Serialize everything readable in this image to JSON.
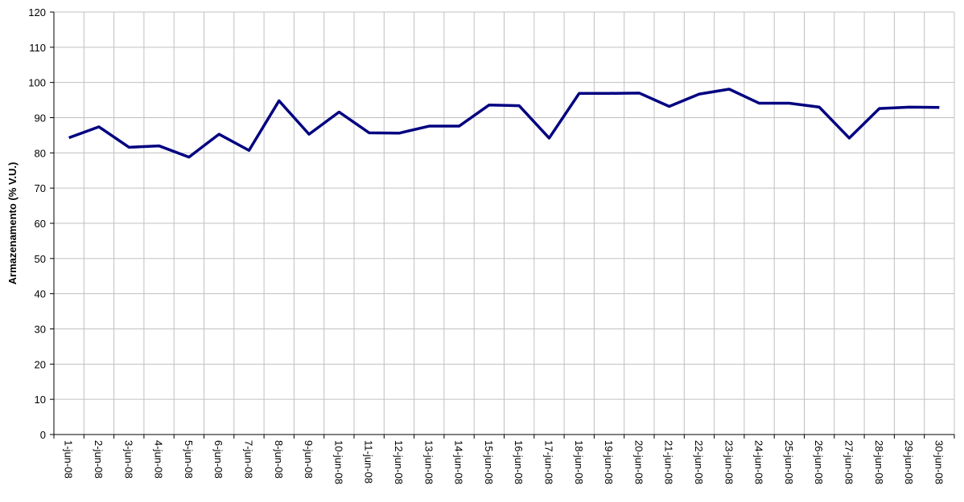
{
  "chart_data": {
    "type": "line",
    "y_label": "Armazenamento (% V.U.)",
    "categories": [
      "1-jun-08",
      "2-jun-08",
      "3-jun-08",
      "4-jun-08",
      "5-jun-08",
      "6-jun-08",
      "7-jun-08",
      "8-jun-08",
      "9-jun-08",
      "10-jun-08",
      "11-jun-08",
      "12-jun-08",
      "13-jun-08",
      "14-jun-08",
      "15-jun-08",
      "16-jun-08",
      "17-jun-08",
      "18-jun-08",
      "19-jun-08",
      "20-jun-08",
      "21-jun-08",
      "22-jun-08",
      "23-jun-08",
      "24-jun-08",
      "25-jun-08",
      "26-jun-08",
      "27-jun-08",
      "28-jun-08",
      "29-jun-08",
      "30-jun-08"
    ],
    "values": [
      84.3,
      87.4,
      81.6,
      82.0,
      78.8,
      85.3,
      80.7,
      94.8,
      85.3,
      91.6,
      85.7,
      85.6,
      87.6,
      87.6,
      93.6,
      93.4,
      84.2,
      96.9,
      96.9,
      97.0,
      93.2,
      96.7,
      98.1,
      94.1,
      94.1,
      93.0,
      84.2,
      92.6,
      93.0,
      92.9
    ],
    "color": "#000080",
    "ylim": [
      0,
      120
    ],
    "yticks": [
      0,
      10,
      20,
      30,
      40,
      50,
      60,
      70,
      80,
      90,
      100,
      110,
      120
    ],
    "grid": true
  }
}
